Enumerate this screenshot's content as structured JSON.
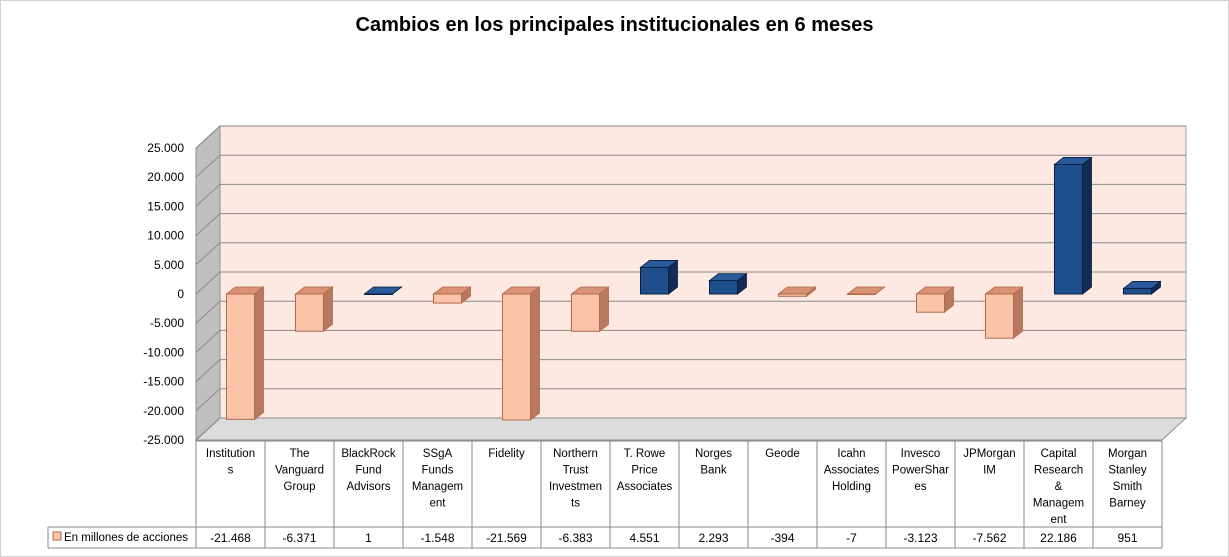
{
  "chart_data": {
    "type": "bar",
    "title": "Cambios en los principales institucionales en 6 meses",
    "xlabel": "",
    "ylabel": "",
    "ylim": [
      -25000,
      25000
    ],
    "yticks": [
      25000,
      20000,
      15000,
      10000,
      5000,
      0,
      -5000,
      -10000,
      -15000,
      -20000,
      -25000
    ],
    "ytick_labels": [
      "25.000",
      "20.000",
      "15.000",
      "10.000",
      "5.000",
      "0",
      "-5.000",
      "-10.000",
      "-15.000",
      "-20.000",
      "-25.000"
    ],
    "categories": [
      [
        "Institution",
        "s"
      ],
      [
        "The",
        "Vanguard",
        "Group"
      ],
      [
        "BlackRock",
        "Fund",
        "Advisors"
      ],
      [
        "SSgA",
        "Funds",
        "Managem",
        "ent"
      ],
      [
        "Fidelity"
      ],
      [
        "Northern",
        "Trust",
        "Investmen",
        "ts"
      ],
      [
        "T. Rowe",
        "Price",
        "Associates"
      ],
      [
        "Norges",
        "Bank"
      ],
      [
        "Geode"
      ],
      [
        "Icahn",
        "Associates",
        "Holding"
      ],
      [
        "Invesco",
        "PowerShar",
        "es"
      ],
      [
        "JPMorgan",
        "IM"
      ],
      [
        "Capital",
        "Research",
        "&",
        "Managem",
        "ent"
      ],
      [
        "Morgan",
        "Stanley",
        "Smith",
        "Barney"
      ]
    ],
    "series": [
      {
        "name": "En millones de acciones",
        "values": [
          -21468,
          -6371,
          1,
          -1548,
          -21569,
          -6383,
          4551,
          2293,
          -394,
          -7,
          -3123,
          -7562,
          22186,
          951
        ],
        "labels": [
          "-21.468",
          "-6.371",
          "1",
          "-1.548",
          "-21.569",
          "-6.383",
          "4.551",
          "2.293",
          "-394",
          "-7",
          "-3.123",
          "-7.562",
          "22.186",
          "951"
        ]
      }
    ],
    "colors": {
      "negative_front": "#fbc3a7",
      "negative_top": "#d99273",
      "negative_side": "#b87a5e",
      "negative_stroke": "#b06a4a",
      "positive_front": "#1f4e8c",
      "positive_top": "#2a5a9a",
      "positive_side": "#0f2c55",
      "positive_stroke": "#0a1f40",
      "wall": "#fde9e2",
      "wall_side": "#bfbfbf",
      "floor": "#dcdcdc"
    },
    "grid": true,
    "legend": "table-left"
  }
}
